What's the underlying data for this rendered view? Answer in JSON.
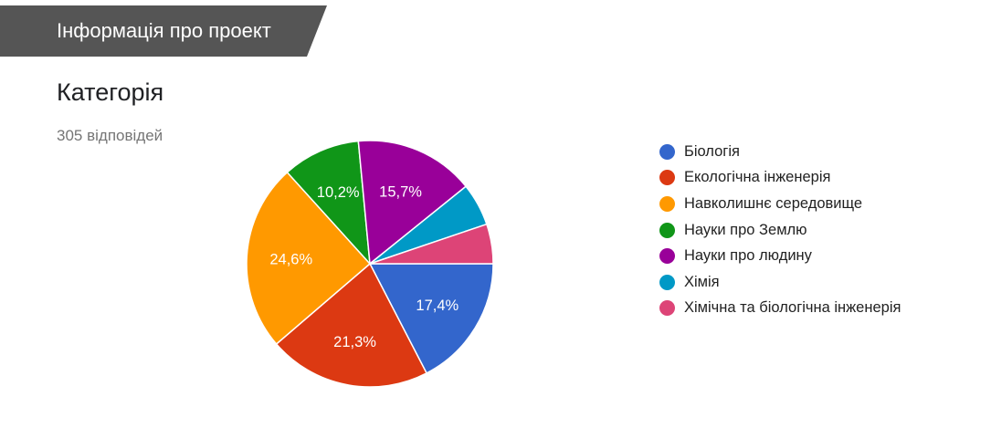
{
  "header": {
    "section_title": "Інформація про проект"
  },
  "question": {
    "title": "Категорія",
    "responses": "305 відповідей"
  },
  "chart_data": {
    "type": "pie",
    "categories": [
      "Біологія",
      "Екологічна інженерія",
      "Навколишнє середовище",
      "Науки про Землю",
      "Науки про людину",
      "Хімія",
      "Хімічна та біологічна інженерія"
    ],
    "values": [
      17.4,
      21.3,
      24.6,
      10.2,
      15.7,
      5.6,
      5.2
    ],
    "data_labels": [
      "17,4%",
      "21,3%",
      "24,6%",
      "10,2%",
      "15,7%",
      "",
      ""
    ],
    "colors": [
      "#3366cc",
      "#dc3912",
      "#ff9900",
      "#109618",
      "#990099",
      "#0099c6",
      "#dd4477"
    ],
    "legend_position": "right",
    "units": "%"
  }
}
